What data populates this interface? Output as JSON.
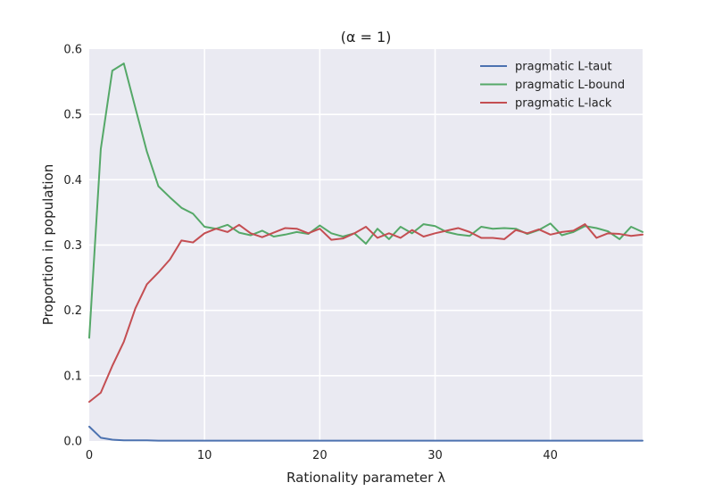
{
  "chart_data": {
    "type": "line",
    "title": "(α = 1)",
    "xlabel": "Rationality parameter λ",
    "ylabel": "Proportion in population",
    "xlim": [
      0,
      48
    ],
    "ylim": [
      0,
      0.6
    ],
    "xticks": [
      "0",
      "10",
      "20",
      "30",
      "40"
    ],
    "yticks": [
      "0.0",
      "0.1",
      "0.2",
      "0.3",
      "0.4",
      "0.5",
      "0.6"
    ],
    "grid": true,
    "legend_position": "top-right",
    "x": [
      0,
      1,
      2,
      3,
      4,
      5,
      6,
      7,
      8,
      9,
      10,
      11,
      12,
      13,
      14,
      15,
      16,
      17,
      18,
      19,
      20,
      21,
      22,
      23,
      24,
      25,
      26,
      27,
      28,
      29,
      30,
      31,
      32,
      33,
      34,
      35,
      36,
      37,
      38,
      39,
      40,
      41,
      42,
      43,
      44,
      45,
      46,
      47,
      48
    ],
    "series": [
      {
        "name": "pragmatic L-taut",
        "color": "#4c72b0",
        "values": [
          0.022,
          0.005,
          0.002,
          0.001,
          0.001,
          0.001,
          0.0005,
          0.0005,
          0.0005,
          0.0005,
          0.0005,
          0.0005,
          0.0005,
          0.0005,
          0.0005,
          0.0005,
          0.0005,
          0.0005,
          0.0005,
          0.0005,
          0.0005,
          0.0005,
          0.0005,
          0.0005,
          0.0005,
          0.0005,
          0.0005,
          0.0005,
          0.0005,
          0.0005,
          0.0005,
          0.0005,
          0.0005,
          0.0005,
          0.0005,
          0.0005,
          0.0005,
          0.0005,
          0.0005,
          0.0005,
          0.0005,
          0.0005,
          0.0005,
          0.0005,
          0.0005,
          0.0005,
          0.0005,
          0.0005,
          0.0005
        ]
      },
      {
        "name": "pragmatic L-bound",
        "color": "#55a868",
        "values": [
          0.158,
          0.447,
          0.567,
          0.578,
          0.51,
          0.443,
          0.39,
          0.373,
          0.357,
          0.348,
          0.328,
          0.325,
          0.331,
          0.319,
          0.315,
          0.322,
          0.313,
          0.316,
          0.32,
          0.317,
          0.33,
          0.318,
          0.313,
          0.318,
          0.302,
          0.325,
          0.309,
          0.328,
          0.318,
          0.332,
          0.329,
          0.32,
          0.316,
          0.314,
          0.328,
          0.325,
          0.326,
          0.325,
          0.317,
          0.323,
          0.333,
          0.315,
          0.32,
          0.329,
          0.326,
          0.321,
          0.309,
          0.328,
          0.32
        ]
      },
      {
        "name": "pragmatic L-lack",
        "color": "#c44e52",
        "values": [
          0.06,
          0.074,
          0.115,
          0.152,
          0.203,
          0.24,
          0.258,
          0.278,
          0.307,
          0.304,
          0.318,
          0.325,
          0.32,
          0.331,
          0.318,
          0.312,
          0.319,
          0.326,
          0.325,
          0.318,
          0.325,
          0.308,
          0.31,
          0.318,
          0.328,
          0.311,
          0.318,
          0.311,
          0.323,
          0.313,
          0.318,
          0.322,
          0.326,
          0.32,
          0.311,
          0.311,
          0.309,
          0.323,
          0.318,
          0.324,
          0.316,
          0.32,
          0.322,
          0.332,
          0.311,
          0.318,
          0.317,
          0.314,
          0.316
        ]
      }
    ]
  }
}
